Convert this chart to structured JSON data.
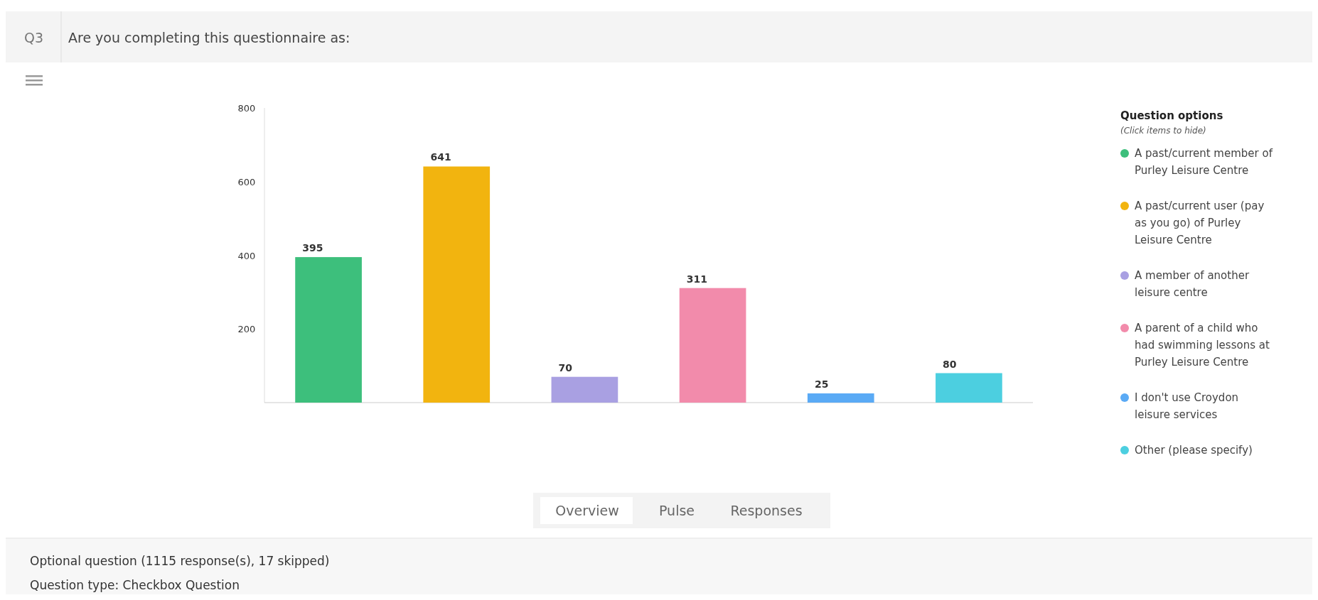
{
  "chart_data": {
    "type": "bar",
    "title": "Are you completing this questionnaire as:",
    "legend_title": "Question options",
    "annotations": [
      "Q3",
      "(Click items to hide)",
      "Overview",
      "Pulse",
      "Responses",
      "Optional question (1115 response(s), 17 skipped)",
      "Question type: Checkbox Question"
    ],
    "categories": [
      null,
      null,
      null,
      null,
      null,
      null
    ],
    "series": [
      {
        "name": "A past/current member of Purley Leisure Centre",
        "color": "#3dbf7c",
        "values": [
          395,
          null,
          null,
          null,
          null,
          null
        ]
      },
      {
        "name": "A past/current user (pay as you go) of Purley Leisure Centre",
        "color": "#f2b40f",
        "values": [
          null,
          641,
          null,
          null,
          null,
          null
        ]
      },
      {
        "name": "A member of another leisure centre",
        "color": "#a9a0e2",
        "values": [
          null,
          null,
          70,
          null,
          null,
          null
        ]
      },
      {
        "name": "A parent of a child who had swimming lessons at Purley Leisure Centre",
        "color": "#f28bab",
        "values": [
          null,
          null,
          null,
          311,
          null,
          null
        ]
      },
      {
        "name": "I don't use Croydon leisure services",
        "color": "#5aaaf5",
        "values": [
          null,
          null,
          null,
          null,
          25,
          null
        ]
      },
      {
        "name": "Other (please specify)",
        "color": "#4ccfe0",
        "values": [
          null,
          null,
          null,
          null,
          null,
          80
        ]
      }
    ],
    "ylim": [
      0,
      800
    ],
    "yticks": [
      200,
      400,
      600,
      800
    ],
    "data_labels": true,
    "legend": "right",
    "grid": false
  }
}
